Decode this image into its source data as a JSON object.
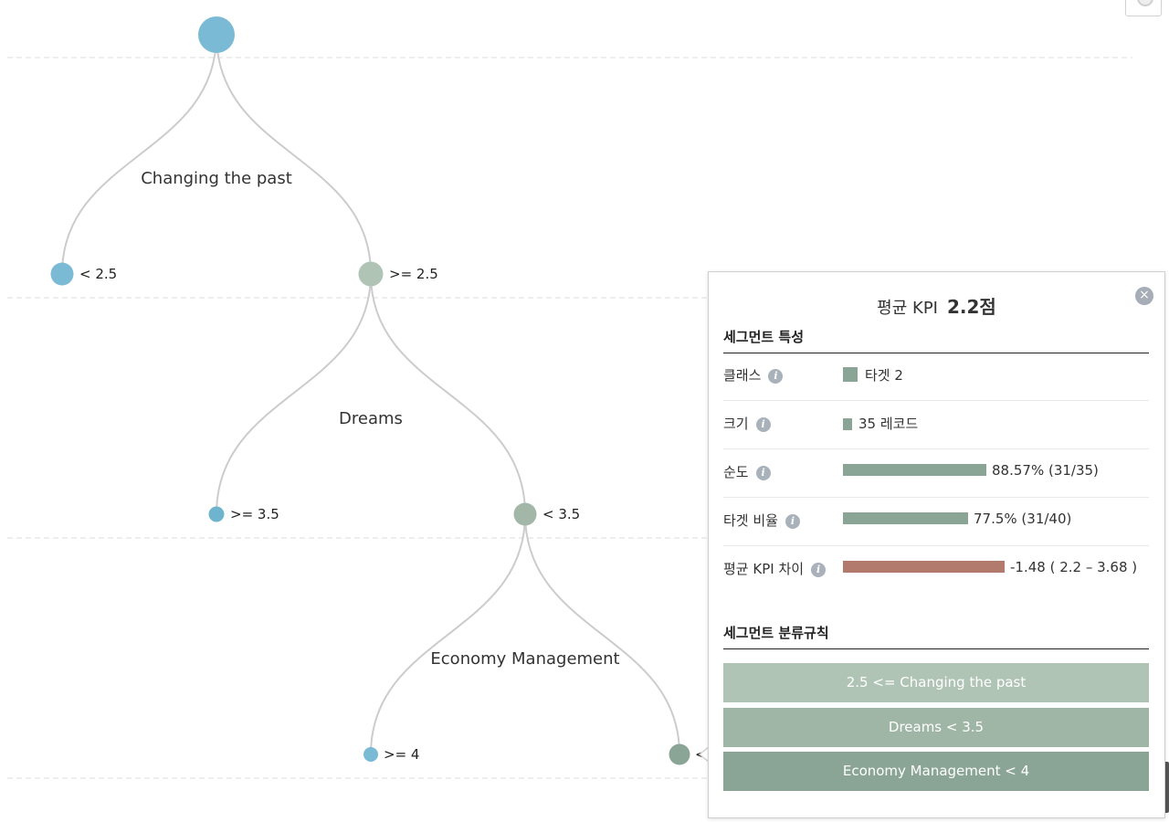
{
  "tree": {
    "split_labels": [
      "Changing the past",
      "Dreams",
      "Economy Management"
    ],
    "branch_labels": [
      "< 2.5",
      ">= 2.5",
      ">= 3.5",
      "< 3.5",
      ">= 4",
      "<"
    ],
    "colors": {
      "link": "#cccccc",
      "blue": "#7bbad4",
      "sage": "#b0c4b6",
      "sage_mid": "#a3b7a8",
      "green": "#8aa595",
      "gridline": "#dddddd"
    }
  },
  "panel": {
    "title_label": "평균 KPI",
    "title_value": "2.2점",
    "close_icon": "×",
    "section1": "세그먼트 특성",
    "info_glyph": "i",
    "rows": [
      {
        "label": "클래스",
        "value": "타겟 2"
      },
      {
        "label": "크기",
        "value": "35 레코드"
      },
      {
        "label": "순도",
        "value": "88.57%  (31/35)",
        "fraction": 0.8857
      },
      {
        "label": "타겟 비율",
        "value": "77.5%  (31/40)",
        "fraction": 0.775
      },
      {
        "label": "평균 KPI 차이",
        "value": "-1.48 ( 2.2 – 3.68 )"
      }
    ],
    "section2": "세그먼트 분류규칙",
    "rules": [
      "2.5 <= Changing the past",
      "Dreams < 3.5",
      "Economy Management < 4"
    ],
    "colors": {
      "bar_green": "#8aa595",
      "bar_red": "#b27a6c",
      "rule1": "#b0c4b6",
      "rule2": "#9fb5a5",
      "rule3": "#8aa595"
    }
  }
}
